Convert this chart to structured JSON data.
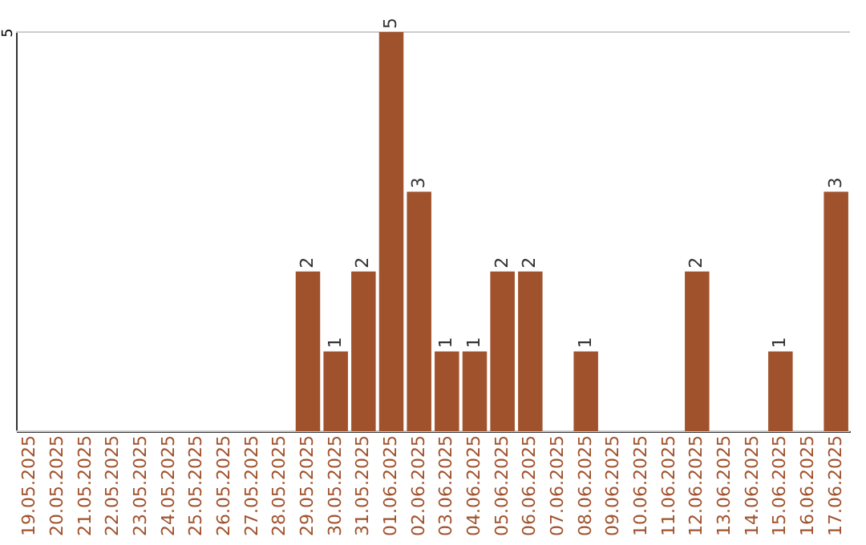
{
  "chart_data": {
    "type": "bar",
    "categories": [
      "19.05.2025",
      "20.05.2025",
      "21.05.2025",
      "22.05.2025",
      "23.05.2025",
      "24.05.2025",
      "25.05.2025",
      "26.05.2025",
      "27.05.2025",
      "28.05.2025",
      "29.05.2025",
      "30.05.2025",
      "31.05.2025",
      "01.06.2025",
      "02.06.2025",
      "03.06.2025",
      "04.06.2025",
      "05.06.2025",
      "06.06.2025",
      "07.06.2025",
      "08.06.2025",
      "09.06.2025",
      "10.06.2025",
      "11.06.2025",
      "12.06.2025",
      "13.06.2025",
      "14.06.2025",
      "15.06.2025",
      "16.06.2025",
      "17.06.2025"
    ],
    "values": [
      0,
      0,
      0,
      0,
      0,
      0,
      0,
      0,
      0,
      0,
      2,
      1,
      2,
      5,
      3,
      1,
      1,
      2,
      2,
      0,
      1,
      0,
      0,
      0,
      2,
      0,
      0,
      1,
      0,
      3
    ],
    "value_labels": [
      null,
      null,
      null,
      null,
      null,
      null,
      null,
      null,
      null,
      null,
      "2",
      "1",
      "2",
      "5",
      "3",
      "1",
      "1",
      "2",
      "2",
      null,
      "1",
      null,
      null,
      null,
      "2",
      null,
      null,
      "1",
      null,
      "3"
    ],
    "color": "#a0522d",
    "ylim": [
      0,
      5
    ],
    "yticks": [
      {
        "value": 0,
        "label": null
      },
      5
    ],
    "grid": "y"
  }
}
